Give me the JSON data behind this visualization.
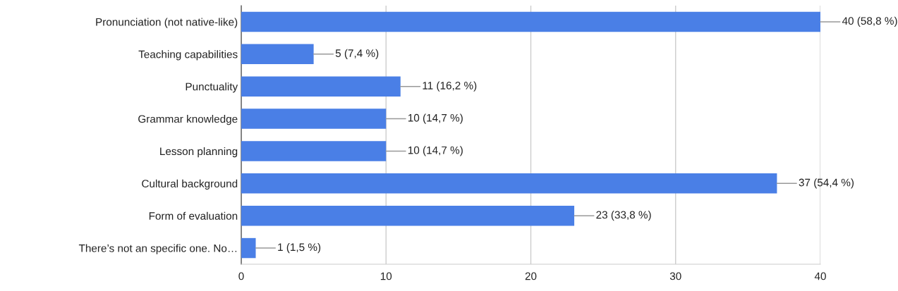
{
  "chart_data": {
    "type": "bar",
    "orientation": "horizontal",
    "categories": [
      "Pronunciation (not native-like)",
      "Teaching capabilities",
      "Punctuality",
      "Grammar knowledge",
      "Lesson planning",
      "Cultural background",
      "Form of evaluation",
      "There’s not an specific one. No…"
    ],
    "values": [
      40,
      5,
      11,
      10,
      10,
      37,
      23,
      1
    ],
    "value_labels": [
      "40 (58,8 %)",
      "5 (7,4 %)",
      "11 (16,2 %)",
      "10 (14,7 %)",
      "10 (14,7 %)",
      "37 (54,4 %)",
      "23 (33,8 %)",
      "1 (1,5 %)"
    ],
    "color": "#4a7fe6",
    "xlim": [
      0,
      40
    ],
    "xticks": [
      0,
      10,
      20,
      30,
      40
    ],
    "grid": "x"
  }
}
